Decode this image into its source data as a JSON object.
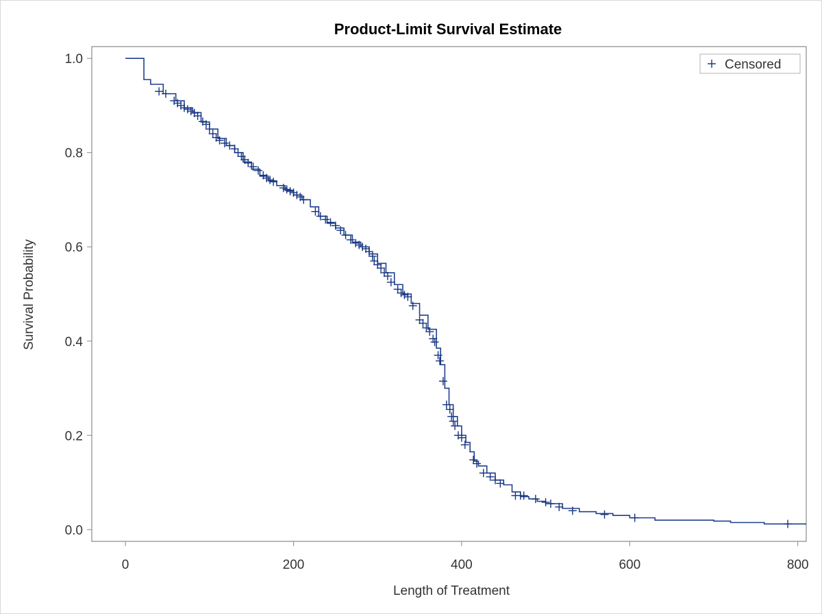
{
  "chart_data": {
    "type": "line",
    "title": "Product-Limit Survival Estimate",
    "xlabel": "Length of Treatment",
    "ylabel": "Survival Probability",
    "xlim": [
      -40,
      810
    ],
    "ylim": [
      -0.025,
      1.025
    ],
    "x_ticks": [
      0,
      200,
      400,
      600,
      800
    ],
    "y_ticks": [
      0.0,
      0.2,
      0.4,
      0.6,
      0.8,
      1.0
    ],
    "x_tick_labels": [
      "0",
      "200",
      "400",
      "600",
      "800"
    ],
    "y_tick_labels": [
      "0.0",
      "0.2",
      "0.4",
      "0.6",
      "0.8",
      "1.0"
    ],
    "grid": false,
    "legend": {
      "position": "top-right",
      "entries": [
        "Censored"
      ],
      "marker": "+"
    },
    "colors": {
      "curve": "#1f3f8f",
      "censor": "#14337f",
      "frame": "#888888"
    },
    "series": [
      {
        "name": "Censored",
        "step": [
          [
            0,
            1.0
          ],
          [
            20,
            1.0
          ],
          [
            22,
            0.955
          ],
          [
            30,
            0.945
          ],
          [
            45,
            0.925
          ],
          [
            60,
            0.91
          ],
          [
            70,
            0.895
          ],
          [
            80,
            0.885
          ],
          [
            90,
            0.865
          ],
          [
            100,
            0.85
          ],
          [
            110,
            0.83
          ],
          [
            120,
            0.815
          ],
          [
            130,
            0.8
          ],
          [
            140,
            0.78
          ],
          [
            150,
            0.765
          ],
          [
            160,
            0.75
          ],
          [
            170,
            0.74
          ],
          [
            180,
            0.73
          ],
          [
            190,
            0.72
          ],
          [
            200,
            0.71
          ],
          [
            210,
            0.7
          ],
          [
            220,
            0.685
          ],
          [
            230,
            0.665
          ],
          [
            240,
            0.65
          ],
          [
            250,
            0.64
          ],
          [
            260,
            0.625
          ],
          [
            270,
            0.61
          ],
          [
            280,
            0.6
          ],
          [
            290,
            0.585
          ],
          [
            300,
            0.565
          ],
          [
            310,
            0.545
          ],
          [
            320,
            0.52
          ],
          [
            330,
            0.5
          ],
          [
            340,
            0.48
          ],
          [
            350,
            0.455
          ],
          [
            360,
            0.425
          ],
          [
            370,
            0.385
          ],
          [
            375,
            0.35
          ],
          [
            380,
            0.3
          ],
          [
            385,
            0.265
          ],
          [
            390,
            0.24
          ],
          [
            395,
            0.22
          ],
          [
            400,
            0.2
          ],
          [
            405,
            0.185
          ],
          [
            410,
            0.165
          ],
          [
            415,
            0.145
          ],
          [
            420,
            0.135
          ],
          [
            430,
            0.12
          ],
          [
            440,
            0.105
          ],
          [
            450,
            0.095
          ],
          [
            460,
            0.08
          ],
          [
            470,
            0.07
          ],
          [
            480,
            0.065
          ],
          [
            490,
            0.06
          ],
          [
            500,
            0.055
          ],
          [
            520,
            0.045
          ],
          [
            540,
            0.038
          ],
          [
            560,
            0.034
          ],
          [
            580,
            0.03
          ],
          [
            600,
            0.025
          ],
          [
            630,
            0.02
          ],
          [
            700,
            0.018
          ],
          [
            720,
            0.015
          ],
          [
            760,
            0.012
          ],
          [
            810,
            0.012
          ]
        ],
        "censored": [
          [
            40,
            0.93
          ],
          [
            48,
            0.925
          ],
          [
            58,
            0.91
          ],
          [
            62,
            0.905
          ],
          [
            66,
            0.9
          ],
          [
            70,
            0.895
          ],
          [
            74,
            0.892
          ],
          [
            78,
            0.888
          ],
          [
            82,
            0.884
          ],
          [
            86,
            0.878
          ],
          [
            92,
            0.866
          ],
          [
            96,
            0.86
          ],
          [
            100,
            0.85
          ],
          [
            104,
            0.84
          ],
          [
            108,
            0.832
          ],
          [
            112,
            0.826
          ],
          [
            118,
            0.82
          ],
          [
            124,
            0.815
          ],
          [
            130,
            0.808
          ],
          [
            134,
            0.8
          ],
          [
            138,
            0.792
          ],
          [
            142,
            0.785
          ],
          [
            146,
            0.778
          ],
          [
            152,
            0.77
          ],
          [
            158,
            0.762
          ],
          [
            164,
            0.752
          ],
          [
            168,
            0.746
          ],
          [
            172,
            0.742
          ],
          [
            176,
            0.738
          ],
          [
            188,
            0.725
          ],
          [
            192,
            0.722
          ],
          [
            196,
            0.718
          ],
          [
            200,
            0.715
          ],
          [
            204,
            0.71
          ],
          [
            208,
            0.706
          ],
          [
            212,
            0.7
          ],
          [
            226,
            0.675
          ],
          [
            232,
            0.665
          ],
          [
            238,
            0.658
          ],
          [
            244,
            0.652
          ],
          [
            250,
            0.645
          ],
          [
            256,
            0.635
          ],
          [
            262,
            0.625
          ],
          [
            268,
            0.615
          ],
          [
            274,
            0.608
          ],
          [
            278,
            0.604
          ],
          [
            282,
            0.6
          ],
          [
            286,
            0.596
          ],
          [
            290,
            0.59
          ],
          [
            294,
            0.58
          ],
          [
            296,
            0.57
          ],
          [
            300,
            0.562
          ],
          [
            304,
            0.555
          ],
          [
            308,
            0.545
          ],
          [
            312,
            0.538
          ],
          [
            316,
            0.525
          ],
          [
            324,
            0.51
          ],
          [
            328,
            0.502
          ],
          [
            332,
            0.498
          ],
          [
            336,
            0.494
          ],
          [
            342,
            0.475
          ],
          [
            350,
            0.445
          ],
          [
            354,
            0.438
          ],
          [
            358,
            0.428
          ],
          [
            362,
            0.42
          ],
          [
            366,
            0.405
          ],
          [
            368,
            0.398
          ],
          [
            372,
            0.37
          ],
          [
            374,
            0.358
          ],
          [
            378,
            0.315
          ],
          [
            382,
            0.265
          ],
          [
            386,
            0.255
          ],
          [
            388,
            0.24
          ],
          [
            390,
            0.23
          ],
          [
            392,
            0.22
          ],
          [
            396,
            0.2
          ],
          [
            400,
            0.195
          ],
          [
            404,
            0.18
          ],
          [
            414,
            0.148
          ],
          [
            418,
            0.14
          ],
          [
            426,
            0.12
          ],
          [
            434,
            0.112
          ],
          [
            440,
            0.105
          ],
          [
            446,
            0.098
          ],
          [
            464,
            0.072
          ],
          [
            470,
            0.072
          ],
          [
            474,
            0.072
          ],
          [
            488,
            0.065
          ],
          [
            500,
            0.058
          ],
          [
            506,
            0.055
          ],
          [
            516,
            0.048
          ],
          [
            532,
            0.04
          ],
          [
            570,
            0.032
          ],
          [
            606,
            0.025
          ],
          [
            788,
            0.012
          ]
        ]
      }
    ]
  }
}
